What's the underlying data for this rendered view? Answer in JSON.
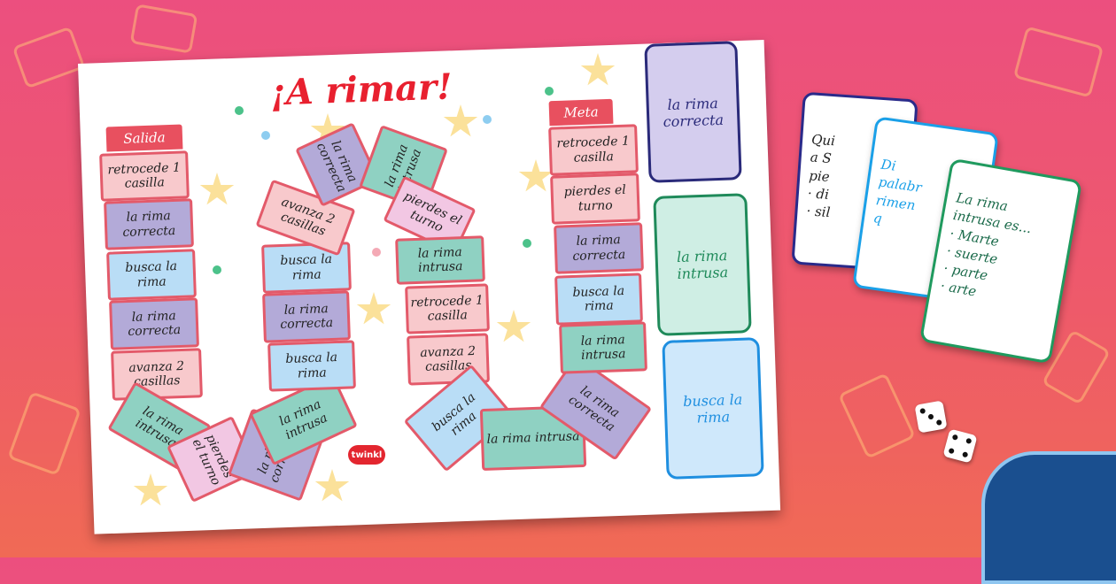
{
  "title": "¡A rimar!",
  "start_label": "Salida",
  "end_label": "Meta",
  "brand": "twinkl",
  "cells": [
    {
      "text": "retrocede 1 casilla",
      "color": "pink"
    },
    {
      "text": "la rima correcta",
      "color": "purple"
    },
    {
      "text": "busca la rima",
      "color": "blue"
    },
    {
      "text": "la rima correcta",
      "color": "purple"
    },
    {
      "text": "avanza 2 casillas",
      "color": "pink"
    },
    {
      "text": "la rima intrusa",
      "color": "green"
    },
    {
      "text": "pierdes el turno",
      "color": "lpink"
    },
    {
      "text": "la rima correcta",
      "color": "purple"
    },
    {
      "text": "la rima intrusa",
      "color": "green"
    },
    {
      "text": "busca la rima",
      "color": "blue"
    },
    {
      "text": "la rima correcta",
      "color": "purple"
    },
    {
      "text": "busca la rima",
      "color": "blue"
    },
    {
      "text": "avanza 2 casillas",
      "color": "pink"
    },
    {
      "text": "la rima correcta",
      "color": "purple"
    },
    {
      "text": "la rima intrusa",
      "color": "green"
    },
    {
      "text": "pierdes el turno",
      "color": "lpink"
    },
    {
      "text": "la rima intrusa",
      "color": "green"
    },
    {
      "text": "retrocede 1 casilla",
      "color": "pink"
    },
    {
      "text": "avanza 2 casillas",
      "color": "pink"
    },
    {
      "text": "busca la rima",
      "color": "blue"
    },
    {
      "text": "la rima intrusa",
      "color": "green"
    },
    {
      "text": "la rima correcta",
      "color": "purple"
    },
    {
      "text": "la rima intrusa",
      "color": "green"
    },
    {
      "text": "busca la rima",
      "color": "blue"
    },
    {
      "text": "la rima correcta",
      "color": "purple"
    },
    {
      "text": "pierdes el turno",
      "color": "pink"
    },
    {
      "text": "retrocede 1 casilla",
      "color": "pink"
    }
  ],
  "deck_cards": [
    {
      "text": "la rima correcta",
      "bg": "#d4cdee",
      "border": "#2a2a7a",
      "fg": "#2a2a7a"
    },
    {
      "text": "la rima intrusa",
      "bg": "#cfeee4",
      "border": "#1f8a5a",
      "fg": "#1f8a5a"
    },
    {
      "text": "busca la rima",
      "bg": "#cfe8fb",
      "border": "#1f8fe0",
      "fg": "#1f8fe0"
    }
  ],
  "loose_cards": [
    {
      "lines": [
        "Qui",
        "a S",
        "pie",
        "· di",
        "· sil"
      ],
      "border": "#2a2a8a",
      "fg": "#222"
    },
    {
      "lines": [
        "Di",
        "palabr",
        "rimen",
        "q"
      ],
      "border": "#1aa0e8",
      "fg": "#1aa0e8"
    },
    {
      "lines": [
        "La rima",
        "intrusa es...",
        "· Marte",
        "· suerte",
        "· parte",
        "· arte"
      ],
      "border": "#1f9a5e",
      "fg": "#1a6a4a"
    }
  ]
}
